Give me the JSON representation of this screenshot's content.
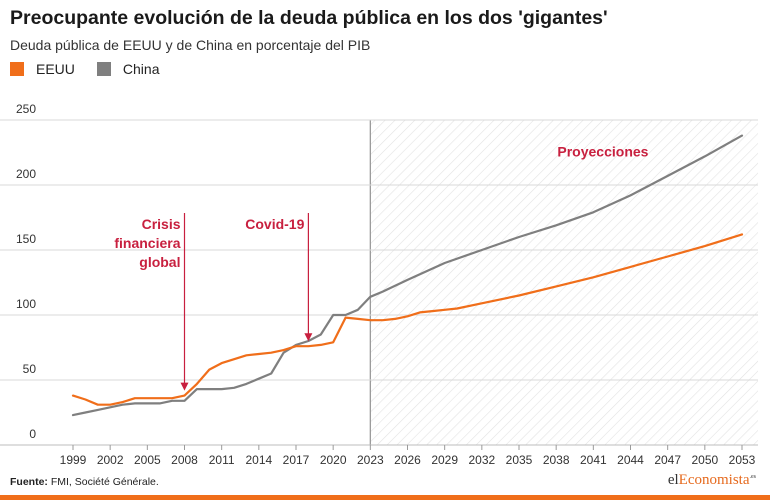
{
  "header": {
    "title": "Preocupante evolución de la deuda pública en los dos 'gigantes'",
    "subtitle": "Deuda pública de EEUU y de China en porcentaje del PIB"
  },
  "colors": {
    "eeuu": "#f06e1a",
    "china": "#7f7f7f",
    "annotation": "#c8203f",
    "grid": "#d8d8d8",
    "projection_hatch": "#e2e2e2"
  },
  "footer": {
    "source_label": "Fuente:",
    "source_text": "FMI, Société Générale.",
    "logo_prefix": "el",
    "logo_accent": "Economista",
    "logo_suffix": ".es"
  },
  "chart_data": {
    "type": "line",
    "title": "Preocupante evolución de la deuda pública en los dos 'gigantes'",
    "subtitle": "Deuda pública de EEUU y de China en porcentaje del PIB",
    "xlabel": "",
    "ylabel": "",
    "xlim": [
      1998,
      2054
    ],
    "ylim": [
      0,
      250
    ],
    "yticks": [
      0,
      50,
      100,
      150,
      200,
      250
    ],
    "xticks": [
      1999,
      2002,
      2005,
      2008,
      2011,
      2014,
      2017,
      2020,
      2023,
      2026,
      2029,
      2032,
      2035,
      2038,
      2041,
      2044,
      2047,
      2050,
      2053
    ],
    "grid": true,
    "legend": "top-left",
    "projection_start": 2023,
    "projection_label": "Proyecciones",
    "series": [
      {
        "name": "EEUU",
        "color": "#f06e1a",
        "points": [
          [
            1999,
            38
          ],
          [
            2000,
            35
          ],
          [
            2001,
            31
          ],
          [
            2002,
            31
          ],
          [
            2003,
            33
          ],
          [
            2004,
            36
          ],
          [
            2005,
            36
          ],
          [
            2006,
            36
          ],
          [
            2007,
            36
          ],
          [
            2008,
            38
          ],
          [
            2009,
            47
          ],
          [
            2010,
            58
          ],
          [
            2011,
            63
          ],
          [
            2012,
            66
          ],
          [
            2013,
            69
          ],
          [
            2014,
            70
          ],
          [
            2015,
            71
          ],
          [
            2016,
            73
          ],
          [
            2017,
            76
          ],
          [
            2018,
            76
          ],
          [
            2019,
            77
          ],
          [
            2020,
            79
          ],
          [
            2021,
            98
          ],
          [
            2022,
            97
          ],
          [
            2023,
            96
          ],
          [
            2024,
            96
          ],
          [
            2025,
            97
          ],
          [
            2026,
            99
          ],
          [
            2027,
            102
          ],
          [
            2028,
            103
          ],
          [
            2029,
            104
          ],
          [
            2030,
            105
          ],
          [
            2032,
            109
          ],
          [
            2035,
            115
          ],
          [
            2038,
            122
          ],
          [
            2041,
            129
          ],
          [
            2044,
            137
          ],
          [
            2047,
            145
          ],
          [
            2050,
            153
          ],
          [
            2053,
            162
          ]
        ]
      },
      {
        "name": "China",
        "color": "#7f7f7f",
        "points": [
          [
            1999,
            23
          ],
          [
            2000,
            25
          ],
          [
            2001,
            27
          ],
          [
            2002,
            29
          ],
          [
            2003,
            31
          ],
          [
            2004,
            32
          ],
          [
            2005,
            32
          ],
          [
            2006,
            32
          ],
          [
            2007,
            34
          ],
          [
            2008,
            34
          ],
          [
            2009,
            43
          ],
          [
            2010,
            43
          ],
          [
            2011,
            43
          ],
          [
            2012,
            44
          ],
          [
            2013,
            47
          ],
          [
            2014,
            51
          ],
          [
            2015,
            55
          ],
          [
            2016,
            71
          ],
          [
            2017,
            77
          ],
          [
            2018,
            80
          ],
          [
            2019,
            85
          ],
          [
            2020,
            100
          ],
          [
            2021,
            100
          ],
          [
            2022,
            104
          ],
          [
            2023,
            114
          ],
          [
            2024,
            118
          ],
          [
            2026,
            127
          ],
          [
            2029,
            140
          ],
          [
            2032,
            150
          ],
          [
            2035,
            160
          ],
          [
            2038,
            169
          ],
          [
            2041,
            179
          ],
          [
            2044,
            192
          ],
          [
            2047,
            207
          ],
          [
            2050,
            222
          ],
          [
            2053,
            238
          ]
        ]
      }
    ],
    "annotations": [
      {
        "x": 2008,
        "lines": [
          "Crisis",
          "financiera",
          "global"
        ]
      },
      {
        "x": 2018,
        "lines": [
          "Covid-19"
        ]
      }
    ]
  }
}
